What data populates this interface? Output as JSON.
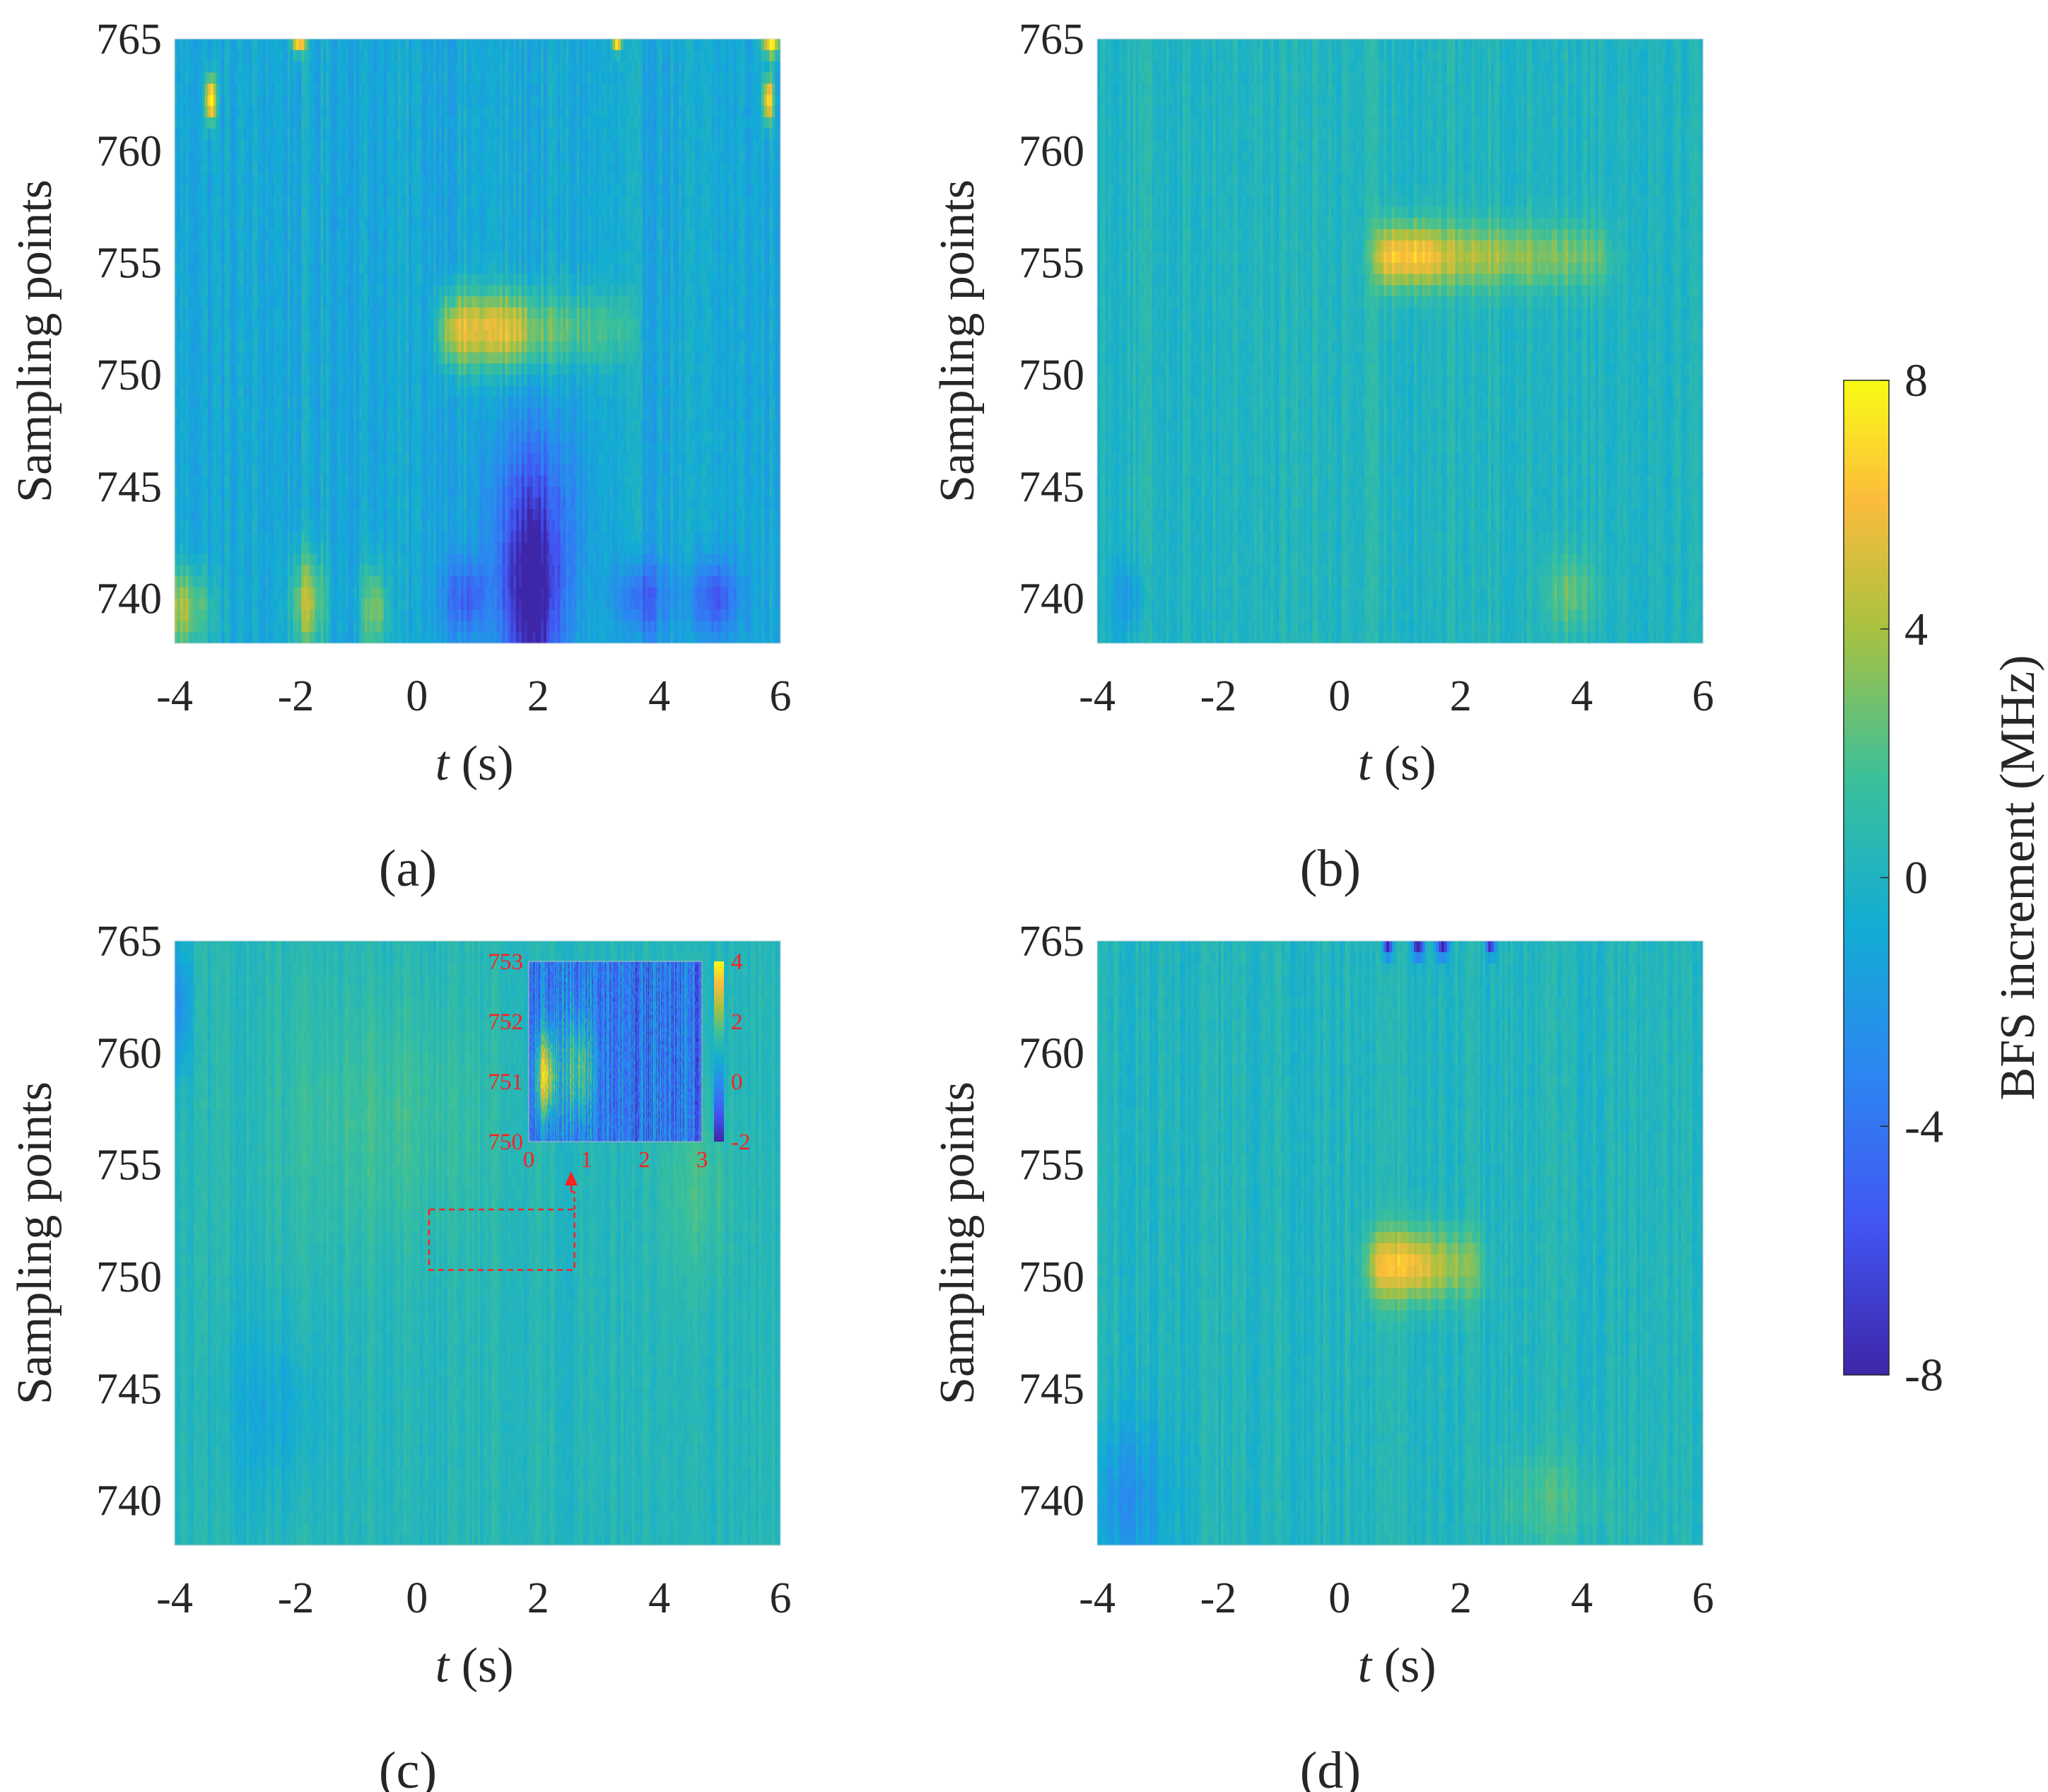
{
  "chart_data": {
    "type": "heatmap",
    "colorbar": {
      "label": "BFS increment (MHz)",
      "range": [
        -8,
        8
      ],
      "ticks": [
        "8",
        "4",
        "0",
        "-4",
        "-8"
      ],
      "colormap": "parula"
    },
    "panels": [
      {
        "id": "a",
        "caption": "(a)",
        "ylabel": "Sampling points",
        "xlabel_var": "t",
        "xlabel_unit": " (s)",
        "x_range": [
          -4,
          6
        ],
        "y_range": [
          738,
          765
        ],
        "x_ticks": [
          "-4",
          "-2",
          "0",
          "2",
          "4",
          "6"
        ],
        "y_ticks": [
          "765",
          "760",
          "755",
          "750",
          "745",
          "740"
        ],
        "base": -1.0,
        "noise": 1.4,
        "features": [
          {
            "t0": 0.4,
            "t1": 1.8,
            "yc": 752,
            "ys": 1.2,
            "amp": 6.5
          },
          {
            "t0": 1.8,
            "t1": 3.6,
            "yc": 752,
            "ys": 1.2,
            "amp": 4.0,
            "fade": true
          },
          {
            "tc": -3.9,
            "ts": 0.35,
            "yc": 739.5,
            "ys": 1.3,
            "amp": 5.0,
            "blob": true
          },
          {
            "tc": -1.8,
            "ts": 0.2,
            "yc": 739.8,
            "ys": 1.5,
            "amp": 5.0,
            "blob": true
          },
          {
            "tc": -0.7,
            "ts": 0.15,
            "yc": 739.5,
            "ys": 1.4,
            "amp": 4.5,
            "blob": true
          },
          {
            "tc": 1.9,
            "ts": 0.35,
            "yc": 739.5,
            "ys": 2.8,
            "amp": -7.0,
            "blob": true
          },
          {
            "tc": 1.9,
            "ts": 0.5,
            "yc": 744.0,
            "ys": 3.0,
            "amp": -4.0,
            "blob": true
          },
          {
            "tc": 0.8,
            "ts": 0.25,
            "yc": 740.0,
            "ys": 1.2,
            "amp": -4.0,
            "blob": true
          },
          {
            "tc": 3.7,
            "ts": 0.3,
            "yc": 740.0,
            "ys": 1.2,
            "amp": -4.0,
            "blob": true
          },
          {
            "tc": 4.9,
            "ts": 0.3,
            "yc": 740.0,
            "ys": 1.2,
            "amp": -4.5,
            "blob": true
          },
          {
            "tc": -3.4,
            "ts": 0.06,
            "yc": 762.3,
            "ys": 0.7,
            "amp": 10,
            "blob": true
          },
          {
            "tc": -1.95,
            "ts": 0.08,
            "yc": 765.0,
            "ys": 0.4,
            "amp": 10,
            "blob": true
          },
          {
            "tc": 3.3,
            "ts": 0.05,
            "yc": 765.0,
            "ys": 0.4,
            "amp": 10,
            "blob": true
          },
          {
            "tc": 5.85,
            "ts": 0.1,
            "yc": 765.0,
            "ys": 0.5,
            "amp": 10,
            "blob": true
          },
          {
            "tc": 5.8,
            "ts": 0.06,
            "yc": 762.3,
            "ys": 0.7,
            "amp": 9,
            "blob": true
          }
        ]
      },
      {
        "id": "b",
        "caption": "(b)",
        "ylabel": "Sampling points",
        "xlabel_var": "t",
        "xlabel_unit": " (s)",
        "x_range": [
          -4,
          6
        ],
        "y_range": [
          738,
          765
        ],
        "x_ticks": [
          "-4",
          "-2",
          "0",
          "2",
          "4",
          "6"
        ],
        "y_ticks": [
          "765",
          "760",
          "755",
          "750",
          "745",
          "740"
        ],
        "base": 0.2,
        "noise": 1.1,
        "features": [
          {
            "t0": 0.6,
            "t1": 1.6,
            "yc": 755.3,
            "ys": 1.0,
            "amp": 6.5
          },
          {
            "t0": 1.6,
            "t1": 4.5,
            "yc": 755.3,
            "ys": 1.0,
            "amp": 4.5,
            "fade": true
          },
          {
            "tc": 3.8,
            "ts": 0.3,
            "yc": 740.3,
            "ys": 1.2,
            "amp": 2.5,
            "blob": true
          },
          {
            "tc": -3.5,
            "ts": 0.2,
            "yc": 740.0,
            "ys": 1.2,
            "amp": -2.0,
            "blob": true
          }
        ]
      },
      {
        "id": "c",
        "caption": "(c)",
        "ylabel": "Sampling points",
        "xlabel_var": "t",
        "xlabel_unit": " (s)",
        "x_range": [
          -4,
          6
        ],
        "y_range": [
          738,
          765
        ],
        "x_ticks": [
          "-4",
          "-2",
          "0",
          "2",
          "4",
          "6"
        ],
        "y_ticks": [
          "765",
          "760",
          "755",
          "750",
          "745",
          "740"
        ],
        "base": 0.4,
        "noise": 0.9,
        "features": [
          {
            "tc": -3.9,
            "ts": 0.12,
            "yc": 762.0,
            "ys": 2.0,
            "amp": -3.0,
            "blob": true
          },
          {
            "tc": -0.5,
            "ts": 1.2,
            "yc": 757.0,
            "ys": 4.0,
            "amp": 1.2,
            "blob": true
          },
          {
            "tc": -2.4,
            "ts": 0.6,
            "yc": 744.0,
            "ys": 3.0,
            "amp": -1.4,
            "blob": true
          },
          {
            "tc": 4.6,
            "ts": 0.4,
            "yc": 754.0,
            "ys": 3.0,
            "amp": 1.4,
            "blob": true
          }
        ],
        "inset": {
          "x_ticks": [
            "0",
            "1",
            "2",
            "3"
          ],
          "y_ticks": [
            "753",
            "752",
            "751",
            "750"
          ],
          "cbar_ticks": [
            "4",
            "2",
            "0",
            "-2"
          ],
          "x_range": [
            0,
            3
          ],
          "y_range": [
            750,
            753
          ],
          "c_range": [
            -2,
            4
          ],
          "features": [
            {
              "tc": 0.3,
              "ts": 0.12,
              "yc": 751.1,
              "ys": 0.5,
              "amp": 3.6,
              "blob": true
            },
            {
              "tc": 0.85,
              "ts": 0.18,
              "yc": 751.2,
              "ys": 0.6,
              "amp": 2.2,
              "blob": true
            }
          ],
          "highlight_box": {
            "t0": 0.2,
            "t1": 2.6,
            "y0": 750.3,
            "y1": 753.0
          }
        }
      },
      {
        "id": "d",
        "caption": "(d)",
        "ylabel": "Sampling points",
        "xlabel_var": "t",
        "xlabel_unit": " (s)",
        "x_range": [
          -4,
          6
        ],
        "y_range": [
          738,
          765
        ],
        "x_ticks": [
          "-4",
          "-2",
          "0",
          "2",
          "4",
          "6"
        ],
        "y_ticks": [
          "765",
          "760",
          "755",
          "750",
          "745",
          "740"
        ],
        "base": 0.2,
        "noise": 1.1,
        "features": [
          {
            "t0": 0.5,
            "t1": 1.4,
            "yc": 750.5,
            "ys": 1.1,
            "amp": 6.0
          },
          {
            "t0": 1.4,
            "t1": 2.4,
            "yc": 750.5,
            "ys": 1.1,
            "amp": 4.8,
            "fade": true
          },
          {
            "tc": -3.5,
            "ts": 0.5,
            "yc": 740.0,
            "ys": 2.5,
            "amp": -2.5,
            "blob": true
          },
          {
            "tc": 3.5,
            "ts": 0.6,
            "yc": 740.0,
            "ys": 1.5,
            "amp": 1.6,
            "blob": true
          },
          {
            "tc": 0.8,
            "ts": 0.05,
            "yc": 765.0,
            "ys": 0.5,
            "amp": -10,
            "blob": true
          },
          {
            "tc": 1.3,
            "ts": 0.06,
            "yc": 765.0,
            "ys": 0.5,
            "amp": -10,
            "blob": true
          },
          {
            "tc": 1.7,
            "ts": 0.06,
            "yc": 765.0,
            "ys": 0.5,
            "amp": -10,
            "blob": true
          },
          {
            "tc": 2.5,
            "ts": 0.05,
            "yc": 765.0,
            "ys": 0.4,
            "amp": -9,
            "blob": true
          }
        ]
      }
    ]
  }
}
